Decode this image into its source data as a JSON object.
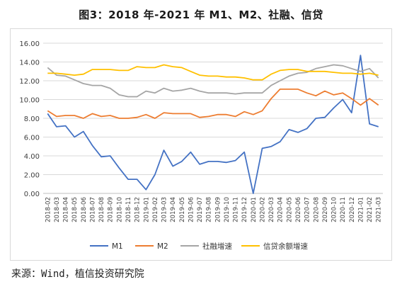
{
  "title": "图3：2018 年-2021 年 M1、M2、社融、信贷",
  "source": "来源：Wind，植信投资研究院",
  "chart_data": {
    "type": "line",
    "ylim": [
      0,
      16
    ],
    "yticks": [
      "0.00",
      "2.00",
      "4.00",
      "6.00",
      "8.00",
      "10.00",
      "12.00",
      "14.00",
      "16.00"
    ],
    "grid": true,
    "legend_position": "bottom",
    "x": [
      "2018-02",
      "2018-03",
      "2018-04",
      "2018-05",
      "2018-06",
      "2018-07",
      "2018-08",
      "2018-09",
      "2018-10",
      "2018-11",
      "2018-12",
      "2019-01",
      "2019-02",
      "2019-03",
      "2019-04",
      "2019-05",
      "2019-06",
      "2019-07",
      "2019-08",
      "2019-09",
      "2019-10",
      "2019-11",
      "2019-12",
      "2020-01",
      "2020-02",
      "2020-03",
      "2020-04",
      "2020-05",
      "2020-06",
      "2020-07",
      "2020-08",
      "2020-09",
      "2020-10",
      "2020-11",
      "2020-12",
      "2021-01",
      "2021-02",
      "2021-03"
    ],
    "series": [
      {
        "name": "M1",
        "color": "#4472c4",
        "values": [
          8.5,
          7.1,
          7.2,
          6.0,
          6.6,
          5.1,
          3.9,
          4.0,
          2.7,
          1.5,
          1.5,
          0.4,
          2.0,
          4.6,
          2.9,
          3.4,
          4.4,
          3.1,
          3.4,
          3.4,
          3.3,
          3.5,
          4.4,
          0.0,
          4.8,
          5.0,
          5.5,
          6.8,
          6.5,
          6.9,
          8.0,
          8.1,
          9.1,
          10.0,
          8.6,
          14.7,
          7.4,
          7.1
        ]
      },
      {
        "name": "M2",
        "color": "#ed7d31",
        "values": [
          8.8,
          8.2,
          8.3,
          8.3,
          8.0,
          8.5,
          8.2,
          8.3,
          8.0,
          8.0,
          8.1,
          8.4,
          8.0,
          8.6,
          8.5,
          8.5,
          8.5,
          8.1,
          8.2,
          8.4,
          8.4,
          8.2,
          8.7,
          8.4,
          8.8,
          10.1,
          11.1,
          11.1,
          11.1,
          10.7,
          10.4,
          10.9,
          10.5,
          10.7,
          10.1,
          9.4,
          10.1,
          9.4
        ]
      },
      {
        "name": "社融增速",
        "color": "#a5a5a5",
        "values": [
          13.4,
          12.6,
          12.5,
          12.1,
          11.7,
          11.5,
          11.5,
          11.2,
          10.5,
          10.3,
          10.3,
          10.9,
          10.7,
          11.2,
          10.9,
          11.0,
          11.2,
          10.9,
          10.7,
          10.7,
          10.7,
          10.6,
          10.7,
          10.7,
          10.7,
          11.5,
          12.0,
          12.5,
          12.8,
          12.9,
          13.3,
          13.5,
          13.7,
          13.6,
          13.3,
          13.0,
          13.3,
          12.3
        ]
      },
      {
        "name": "信贷余额增速",
        "color": "#ffc000",
        "values": [
          12.8,
          12.8,
          12.7,
          12.6,
          12.7,
          13.2,
          13.2,
          13.2,
          13.1,
          13.1,
          13.5,
          13.4,
          13.4,
          13.7,
          13.5,
          13.4,
          13.0,
          12.6,
          12.5,
          12.5,
          12.4,
          12.4,
          12.3,
          12.1,
          12.1,
          12.7,
          13.1,
          13.2,
          13.2,
          13.0,
          13.0,
          13.0,
          12.9,
          12.8,
          12.8,
          12.7,
          12.8,
          12.6
        ]
      }
    ]
  }
}
